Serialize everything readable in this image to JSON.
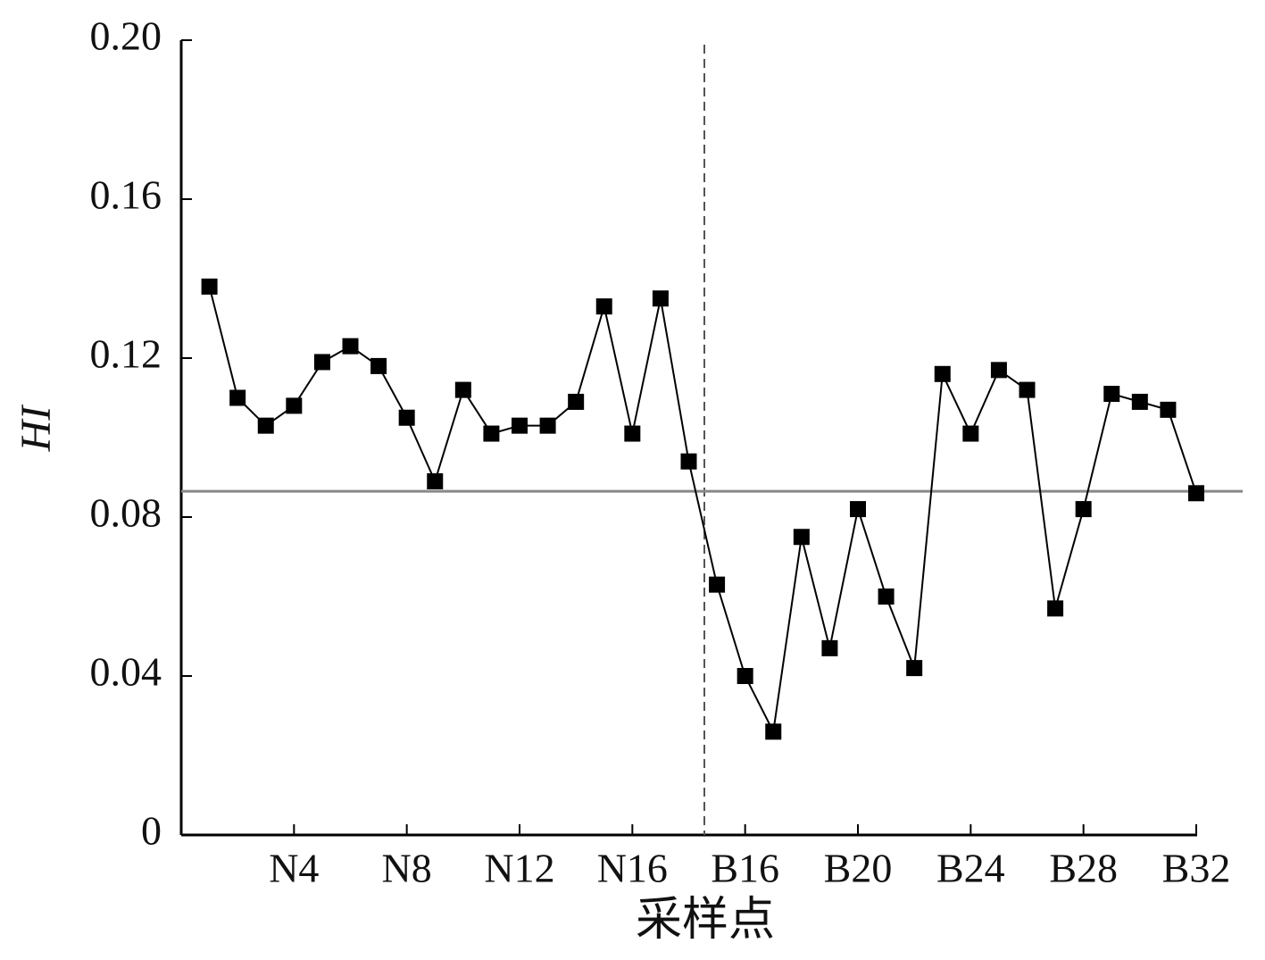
{
  "chart_data": {
    "type": "line",
    "x_label": "采样点",
    "y_label": "HI",
    "categories": [
      null,
      null,
      null,
      "N4",
      null,
      null,
      null,
      "N8",
      null,
      null,
      null,
      "N12",
      null,
      null,
      null,
      "N16",
      null,
      null,
      null,
      "B16",
      null,
      null,
      null,
      "B20",
      null,
      null,
      null,
      "B24",
      null,
      null,
      null,
      "B28",
      null,
      null,
      null,
      "B32"
    ],
    "series": [
      {
        "color": "#000000",
        "values": [
          0.138,
          0.11,
          0.103,
          0.108,
          0.119,
          0.123,
          0.118,
          0.105,
          0.089,
          0.112,
          0.101,
          0.103,
          0.103,
          0.109,
          0.133,
          0.101,
          0.135,
          0.094,
          0.063,
          0.04,
          0.026,
          0.075,
          0.047,
          0.082,
          0.06,
          0.042,
          0.116,
          0.101,
          0.117,
          0.112,
          0.057,
          0.082,
          0.111,
          0.109,
          0.107,
          0.086
        ]
      }
    ],
    "reference_line": 0.0865,
    "ylim": [
      0,
      0.2
    ],
    "yticks": [
      0,
      0.04,
      0.08,
      0.12,
      0.16,
      {
        "value": 0.2,
        "label": "0.20"
      }
    ]
  }
}
